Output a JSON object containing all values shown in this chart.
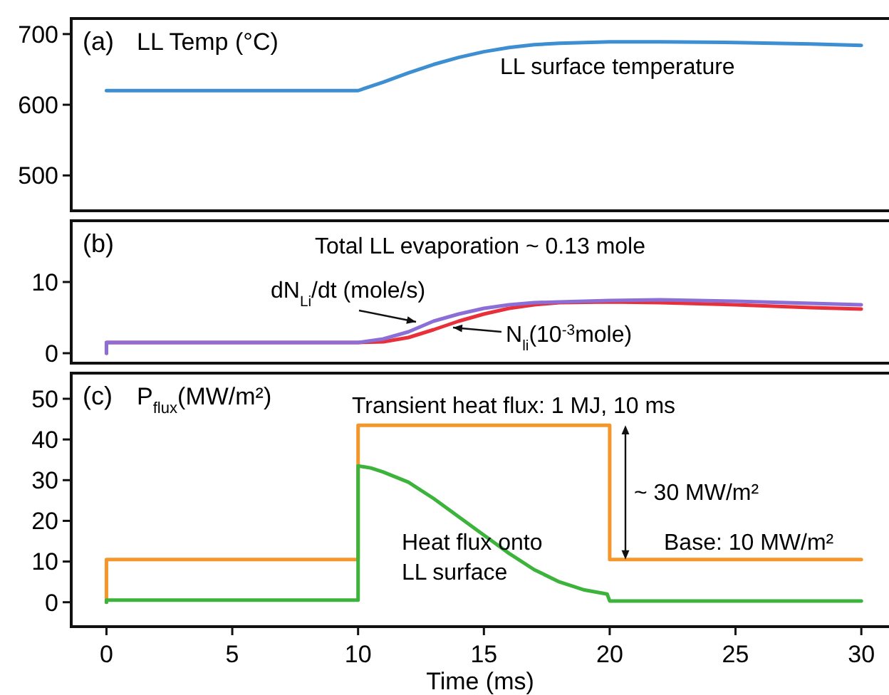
{
  "chart_data": [
    {
      "type": "line",
      "title": "(a)",
      "ylabel": "LL Temp (°C)",
      "xlim": [
        -1.4,
        31.1
      ],
      "ylim": [
        450,
        722
      ],
      "yticks": [
        500,
        600,
        700
      ],
      "tick_labels": "y",
      "annotations": [
        "LL surface temperature"
      ],
      "series": [
        {
          "color": "#3d8fd1",
          "x": [
            0,
            10,
            11,
            12,
            13,
            14,
            15,
            16,
            17,
            18,
            20,
            22,
            25,
            28,
            30
          ],
          "values": [
            620,
            620,
            632,
            645,
            657,
            667,
            675,
            681,
            685,
            687,
            689,
            689,
            688,
            686,
            684
          ]
        }
      ]
    },
    {
      "type": "line",
      "title": "(b)",
      "xlim": [
        -1.4,
        31.1
      ],
      "ylim": [
        -1.4,
        18.6
      ],
      "yticks": [
        0,
        10
      ],
      "tick_labels": "y",
      "annotations": [
        "Total LL evaporation ~ 0.13 mole"
      ],
      "series": [
        {
          "name": "N$_{li}$(10$^{-3}$mole)",
          "color": "#e8303a",
          "x": [
            0,
            0,
            10,
            11,
            12,
            13,
            14,
            15,
            16,
            17,
            18,
            20,
            22,
            25,
            28,
            30
          ],
          "values": [
            0,
            1.5,
            1.5,
            1.6,
            2.2,
            3.3,
            4.5,
            5.5,
            6.3,
            6.8,
            7.1,
            7.2,
            7.1,
            6.8,
            6.4,
            6.2
          ]
        },
        {
          "name": "dN$_{Li}$/dt (mole/s)",
          "color": "#8c6fd6",
          "x": [
            0,
            0,
            10,
            11,
            12,
            13,
            14,
            15,
            16,
            17,
            18,
            20,
            22,
            25,
            28,
            30
          ],
          "values": [
            0,
            1.5,
            1.5,
            2,
            3,
            4.5,
            5.5,
            6.3,
            6.8,
            7.1,
            7.2,
            7.4,
            7.5,
            7.3,
            7,
            6.8
          ]
        }
      ]
    },
    {
      "type": "line",
      "title": "(c)",
      "ylabel": "P$_{flux}$(MW/m²)",
      "xlabel": "Time (ms)",
      "xlim": [
        -1.4,
        31.1
      ],
      "ylim": [
        -6,
        56.3
      ],
      "yticks": [
        0,
        10,
        20,
        30,
        40,
        50
      ],
      "xticks": [
        0,
        5,
        10,
        15,
        20,
        25,
        30
      ],
      "annotations": [
        "Transient heat flux: 1 MJ, 10 ms",
        "~ 30 MW/m²",
        "Base: 10 MW/m²",
        "Heat flux onto\nLL surface"
      ],
      "series": [
        {
          "color": "#f5962a",
          "x": [
            0,
            0,
            10,
            10,
            20,
            20,
            30
          ],
          "values": [
            0,
            10.5,
            10.5,
            43.5,
            43.5,
            10.5,
            10.5
          ]
        },
        {
          "color": "#3cb43c",
          "x": [
            0,
            0,
            10,
            10,
            10.5,
            11,
            12,
            13,
            14,
            15,
            16,
            17,
            18,
            19,
            19.9,
            20,
            30
          ],
          "values": [
            0,
            0.5,
            0.5,
            33.5,
            33,
            32,
            29.5,
            25.5,
            21,
            16.5,
            12,
            8,
            5,
            3,
            2,
            0.3,
            0.3
          ]
        }
      ]
    }
  ]
}
